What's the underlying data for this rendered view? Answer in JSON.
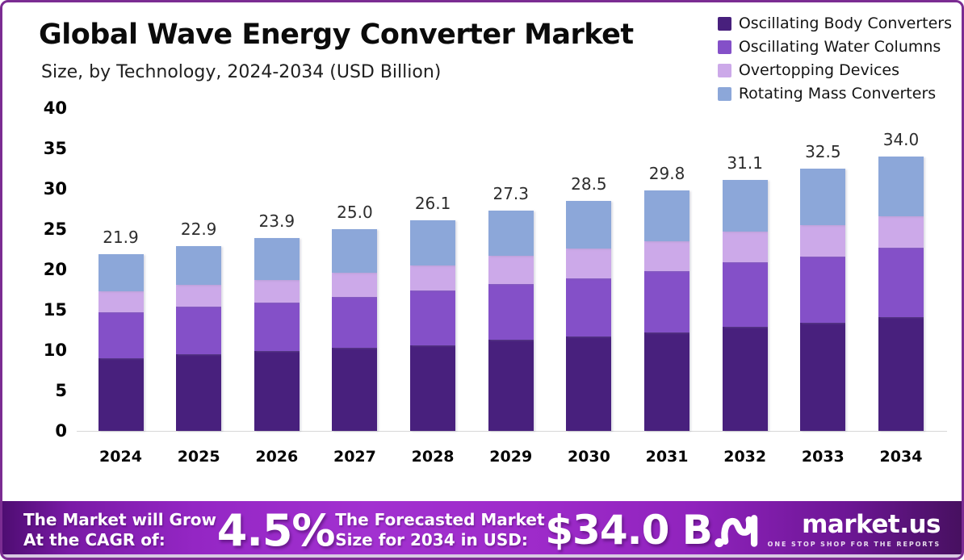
{
  "header": {
    "title": "Global Wave Energy Converter Market",
    "subtitle": "Size, by Technology, 2024-2034 (USD Billion)"
  },
  "chart_data": {
    "type": "bar",
    "stacked": true,
    "title": "Global Wave Energy Converter Market Size, by Technology, 2024-2034 (USD Billion)",
    "categories": [
      "2024",
      "2025",
      "2026",
      "2027",
      "2028",
      "2029",
      "2030",
      "2031",
      "2032",
      "2033",
      "2034"
    ],
    "series": [
      {
        "name": "Oscillating Body Converters",
        "color": "#48207D",
        "values": [
          9.0,
          9.5,
          9.9,
          10.3,
          10.6,
          11.3,
          11.7,
          12.2,
          12.9,
          13.4,
          14.1
        ]
      },
      {
        "name": "Oscillating Water Columns",
        "color": "#8450C8",
        "values": [
          5.7,
          5.9,
          6.0,
          6.3,
          6.8,
          6.9,
          7.2,
          7.6,
          8.0,
          8.2,
          8.6
        ]
      },
      {
        "name": "Overtopping Devices",
        "color": "#CCA9E9",
        "values": [
          2.6,
          2.7,
          2.8,
          3.0,
          3.1,
          3.5,
          3.7,
          3.7,
          3.8,
          3.9,
          3.9
        ]
      },
      {
        "name": "Rotating Mass Converters",
        "color": "#8CA7D9",
        "values": [
          4.6,
          4.8,
          5.2,
          5.4,
          5.6,
          5.6,
          5.9,
          6.3,
          6.4,
          7.0,
          7.4
        ]
      }
    ],
    "totals": [
      21.9,
      22.9,
      23.9,
      25.0,
      26.1,
      27.3,
      28.5,
      29.8,
      31.1,
      32.5,
      34.0
    ],
    "xlabel": "",
    "ylabel": "",
    "ylim": [
      0,
      40
    ],
    "y_ticks": [
      0,
      5,
      10,
      15,
      20,
      25,
      30,
      35,
      40
    ],
    "grid": false,
    "legend_position": "top-right"
  },
  "banner": {
    "cagr_label_line1": "The Market will Grow",
    "cagr_label_line2": "At the CAGR of:",
    "cagr_value": "4.5%",
    "forecast_label_line1": "The Forecasted Market",
    "forecast_label_line2": "Size for 2034 in USD:",
    "forecast_value": "$34.0 B",
    "logo_text": "market.us",
    "logo_tagline": "ONE STOP SHOP FOR THE REPORTS"
  },
  "colors": {
    "frame_border": "#7B2C92",
    "banner_gradient_mid": "#9E2BCA",
    "axis_line": "#D7D7D7"
  }
}
